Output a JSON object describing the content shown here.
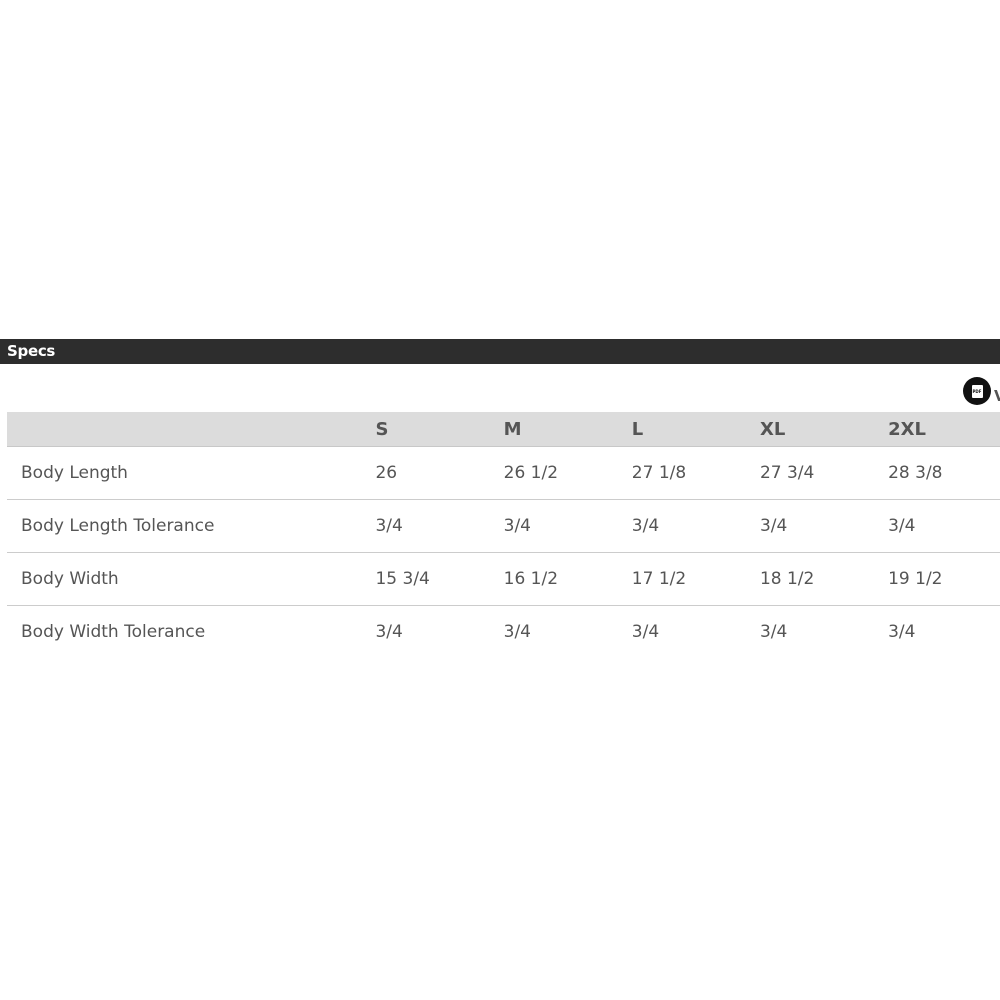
{
  "section_title": "Specs",
  "pdf_link": {
    "icon": "pdf-file-icon",
    "icon_text": "PDF",
    "label": "V"
  },
  "table": {
    "headers": [
      "",
      "S",
      "M",
      "L",
      "XL",
      "2XL"
    ],
    "rows": [
      {
        "label": "Body Length",
        "values": [
          "26",
          "26 1/2",
          "27 1/8",
          "27 3/4",
          "28 3/8"
        ]
      },
      {
        "label": "Body Length Tolerance",
        "values": [
          "3/4",
          "3/4",
          "3/4",
          "3/4",
          "3/4"
        ]
      },
      {
        "label": "Body Width",
        "values": [
          "15 3/4",
          "16 1/2",
          "17 1/2",
          "18 1/2",
          "19 1/2"
        ]
      },
      {
        "label": "Body Width Tolerance",
        "values": [
          "3/4",
          "3/4",
          "3/4",
          "3/4",
          "3/4"
        ]
      }
    ]
  }
}
